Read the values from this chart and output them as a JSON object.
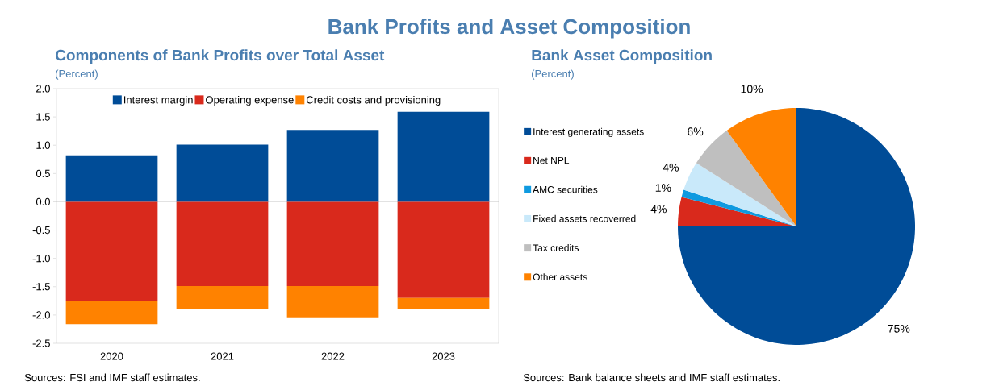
{
  "chart_data": [
    {
      "type": "bar",
      "title": "Bank Profits and Asset Composition",
      "subtitle": "Components of Bank Profits over Total Asset",
      "ylabel": "(Percent)",
      "categories": [
        "2020",
        "2021",
        "2022",
        "2023"
      ],
      "stacked": true,
      "legend": "top",
      "series": [
        {
          "name": "Interest margin",
          "color": "#004c97",
          "values": [
            0.82,
            1.01,
            1.27,
            1.59
          ]
        },
        {
          "name": "Operating expense",
          "color": "#d9291c",
          "values": [
            -1.75,
            -1.49,
            -1.49,
            -1.7
          ]
        },
        {
          "name": "Credit costs and provisioning",
          "color": "#ff8200",
          "values": [
            -0.41,
            -0.4,
            -0.55,
            -0.2
          ]
        }
      ],
      "ylim": [
        -2.5,
        2.0
      ],
      "yticks": [
        {
          "value": -2.5,
          "label": "-2.5"
        },
        {
          "value": -2,
          "label": "-2.0"
        },
        {
          "value": -1.5,
          "label": "-1.5"
        },
        {
          "value": -1,
          "label": "-1.0"
        },
        {
          "value": -0.5,
          "label": "-0.5"
        },
        {
          "value": 0,
          "label": "0.0"
        },
        {
          "value": 0.5,
          "label": "0.5"
        },
        {
          "value": 1,
          "label": "1.0"
        },
        {
          "value": 1.5,
          "label": "1.5"
        },
        {
          "value": 2,
          "label": "2.0"
        }
      ],
      "annotations": [
        "Sources: FSI and IMF staff estimates."
      ]
    },
    {
      "type": "pie",
      "title": "Bank Asset Composition",
      "subtitle": "(Percent)",
      "legend": "left",
      "categories": [
        "Interest generating assets",
        "Net NPL",
        "AMC securities",
        "Fixed assets recoverred",
        "Tax credits",
        "Other assets"
      ],
      "values": [
        75,
        4,
        1,
        4,
        6,
        10
      ],
      "value_labels": [
        "75%",
        "4%",
        "1%",
        "4%",
        "6%",
        "10%"
      ],
      "colors": [
        "#004c97",
        "#d9291c",
        "#0f9ae0",
        "#c9e9fa",
        "#bfbfbf",
        "#ff8200"
      ],
      "annotations": [
        "Sources: Bank balance sheets and IMF staff estimates."
      ]
    }
  ]
}
